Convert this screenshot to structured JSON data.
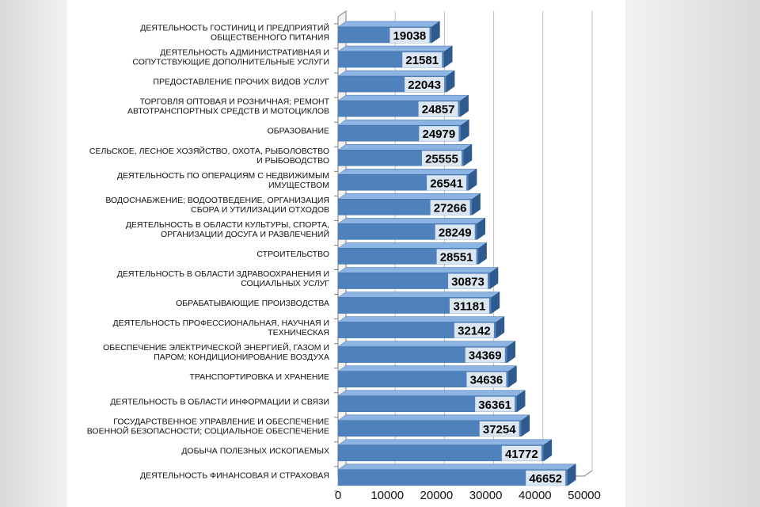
{
  "chart_data": {
    "type": "bar",
    "orientation": "horizontal",
    "categories": [
      [
        "ДЕЯТЕЛЬНОСТЬ ГОСТИНИЦ И ПРЕДПРИЯТИЙ",
        "ОБЩЕСТВЕННОГО ПИТАНИЯ"
      ],
      [
        "ДЕЯТЕЛЬНОСТЬ АДМИНИСТРАТИВНАЯ И",
        "СОПУТСТВУЮЩИЕ ДОПОЛНИТЕЛЬНЫЕ УСЛУГИ"
      ],
      [
        "ПРЕДОСТАВЛЕНИЕ ПРОЧИХ ВИДОВ УСЛУГ"
      ],
      [
        "ТОРГОВЛЯ ОПТОВАЯ И РОЗНИЧНАЯ; РЕМОНТ",
        "АВТОТРАНСПОРТНЫХ СРЕДСТВ И МОТОЦИКЛОВ"
      ],
      [
        "ОБРАЗОВАНИЕ"
      ],
      [
        "СЕЛЬСКОЕ, ЛЕСНОЕ ХОЗЯЙСТВО, ОХОТА, РЫБОЛОВСТВО",
        "И РЫБОВОДСТВО"
      ],
      [
        "ДЕЯТЕЛЬНОСТЬ ПО ОПЕРАЦИЯМ С НЕДВИЖИМЫМ",
        "ИМУЩЕСТВОМ"
      ],
      [
        "ВОДОСНАБЖЕНИЕ; ВОДООТВЕДЕНИЕ, ОРГАНИЗАЦИЯ",
        "СБОРА И УТИЛИЗАЦИИ ОТХОДОВ"
      ],
      [
        "ДЕЯТЕЛЬНОСТЬ В ОБЛАСТИ КУЛЬТУРЫ, СПОРТА,",
        "ОРГАНИЗАЦИИ ДОСУГА И РАЗВЛЕЧЕНИЙ"
      ],
      [
        "СТРОИТЕЛЬСТВО"
      ],
      [
        "ДЕЯТЕЛЬНОСТЬ В ОБЛАСТИ ЗДРАВООХРАНЕНИЯ И",
        "СОЦИАЛЬНЫХ УСЛУГ"
      ],
      [
        "ОБРАБАТЫВАЮЩИЕ ПРОИЗВОДСТВА"
      ],
      [
        "ДЕЯТЕЛЬНОСТЬ ПРОФЕССИОНАЛЬНАЯ, НАУЧНАЯ И",
        "ТЕХНИЧЕСКАЯ"
      ],
      [
        "ОБЕСПЕЧЕНИЕ ЭЛЕКТРИЧЕСКОЙ ЭНЕРГИЕЙ, ГАЗОМ И",
        "ПАРОМ; КОНДИЦИОНИРОВАНИЕ ВОЗДУХА"
      ],
      [
        "ТРАНСПОРТИРОВКА И ХРАНЕНИЕ"
      ],
      [
        "ДЕЯТЕЛЬНОСТЬ В ОБЛАСТИ ИНФОРМАЦИИ И СВЯЗИ"
      ],
      [
        "ГОСУДАРСТВЕННОЕ УПРАВЛЕНИЕ И ОБЕСПЕЧЕНИЕ",
        "ВОЕННОЙ БЕЗОПАСНОСТИ; СОЦИАЛЬНОЕ ОБЕСПЕЧЕНИЕ"
      ],
      [
        "ДОБЫЧА ПОЛЕЗНЫХ ИСКОПАЕМЫХ"
      ],
      [
        "ДЕЯТЕЛЬНОСТЬ ФИНАНСОВАЯ И СТРАХОВАЯ"
      ]
    ],
    "values": [
      19038,
      21581,
      22043,
      24857,
      24979,
      25555,
      26541,
      27266,
      28249,
      28551,
      30873,
      31181,
      32142,
      34369,
      34636,
      36361,
      37254,
      41772,
      46652
    ],
    "xticks": [
      "0",
      "10000",
      "20000",
      "30000",
      "40000",
      "50000"
    ],
    "xlim": [
      0,
      50000
    ],
    "title": "",
    "xlabel": "",
    "ylabel": "",
    "grid": true,
    "legend": "none",
    "colors": {
      "bar_front": "#4f81bd",
      "bar_top": "#8eb4e3",
      "bar_side": "#2e5b8f",
      "label_box": "#dce6f2",
      "grid": "#bfbfbf",
      "axis": "#7f7f7f"
    }
  }
}
